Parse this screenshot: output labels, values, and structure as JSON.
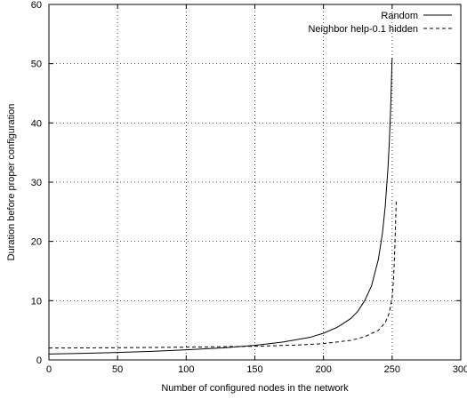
{
  "chart_data": {
    "type": "line",
    "xlabel": "Number of configured nodes in the network",
    "ylabel": "Duration before proper configuration",
    "xlim": [
      0,
      300
    ],
    "ylim": [
      0,
      60
    ],
    "xticks": [
      "0",
      "50",
      "100",
      "150",
      "200",
      "250",
      "300"
    ],
    "yticks": [
      "0",
      "10",
      "20",
      "30",
      "40",
      "50",
      "60"
    ],
    "grid": true,
    "legend_position": "top-right",
    "series": [
      {
        "name": "Random",
        "style": "solid",
        "color": "#000000",
        "x": [
          0,
          25,
          50,
          75,
          100,
          125,
          150,
          170,
          190,
          200,
          210,
          220,
          225,
          230,
          235,
          240,
          243,
          245,
          247,
          248,
          249,
          250
        ],
        "y": [
          1.0,
          1.1,
          1.25,
          1.45,
          1.7,
          2.0,
          2.45,
          3.0,
          3.8,
          4.5,
          5.5,
          7.0,
          8.2,
          10.0,
          12.5,
          17.0,
          21.5,
          26.0,
          32.5,
          37.0,
          43.0,
          51.0
        ]
      },
      {
        "name": "Neighbor help-0.1 hidden",
        "style": "dashed",
        "color": "#000000",
        "x": [
          0,
          50,
          100,
          150,
          180,
          200,
          220,
          230,
          240,
          245,
          248,
          250,
          251,
          252,
          253
        ],
        "y": [
          2.0,
          2.05,
          2.15,
          2.3,
          2.5,
          2.75,
          3.3,
          3.9,
          5.0,
          6.3,
          8.0,
          10.5,
          13.5,
          19.0,
          27.0
        ]
      }
    ]
  }
}
